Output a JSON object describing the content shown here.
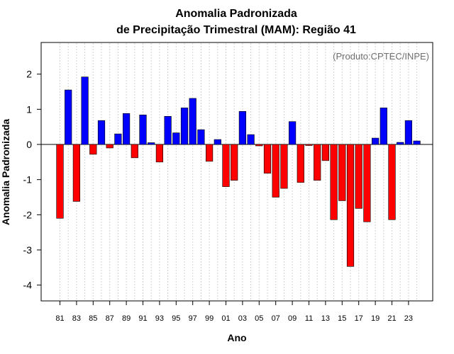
{
  "chart_data": {
    "type": "bar",
    "title": "Anomalia Padronizada",
    "subtitle": "de Precipitação Trimestral (MAM): Região 41",
    "xlabel": "Ano",
    "ylabel": "Anomalia Padronizada",
    "annotation": "(Produto:CPTEC/INPE)",
    "ylim": [
      -4.45,
      2.9
    ],
    "yticks": [
      -4,
      -3,
      -2,
      -1,
      0,
      1,
      2
    ],
    "xtick_labels": [
      "81",
      "83",
      "85",
      "87",
      "89",
      "91",
      "93",
      "95",
      "97",
      "99",
      "01",
      "03",
      "05",
      "07",
      "09",
      "11",
      "13",
      "15",
      "17",
      "19",
      "21",
      "23"
    ],
    "categories": [
      "1981",
      "1982",
      "1983",
      "1984",
      "1985",
      "1986",
      "1987",
      "1988",
      "1989",
      "1990",
      "1991",
      "1992",
      "1993",
      "1994",
      "1995",
      "1996",
      "1997",
      "1998",
      "1999",
      "2000",
      "2001",
      "2002",
      "2003",
      "2004",
      "2005",
      "2006",
      "2007",
      "2008",
      "2009",
      "2010",
      "2011",
      "2012",
      "2013",
      "2014",
      "2015",
      "2016",
      "2017",
      "2018",
      "2019",
      "2020",
      "2021",
      "2022",
      "2023",
      "2024"
    ],
    "values": [
      -2.1,
      1.55,
      -1.62,
      1.92,
      -0.28,
      0.68,
      -0.1,
      0.3,
      0.88,
      -0.38,
      0.84,
      0.05,
      -0.5,
      0.8,
      0.33,
      1.04,
      1.31,
      0.42,
      -0.48,
      0.14,
      -1.2,
      -1.02,
      0.94,
      0.28,
      -0.04,
      -0.82,
      -1.5,
      -1.25,
      0.65,
      -1.08,
      -0.03,
      -1.02,
      -0.46,
      -2.14,
      -1.6,
      -3.47,
      -1.82,
      -2.2,
      0.18,
      1.04,
      -2.14,
      0.06,
      0.68,
      0.1
    ],
    "grid": true,
    "colors": {
      "positive": "#0000ff",
      "negative": "#ff0000",
      "axis": "#000000",
      "grid": "#d3d3d3",
      "annotation": "#6e6e6e"
    }
  }
}
